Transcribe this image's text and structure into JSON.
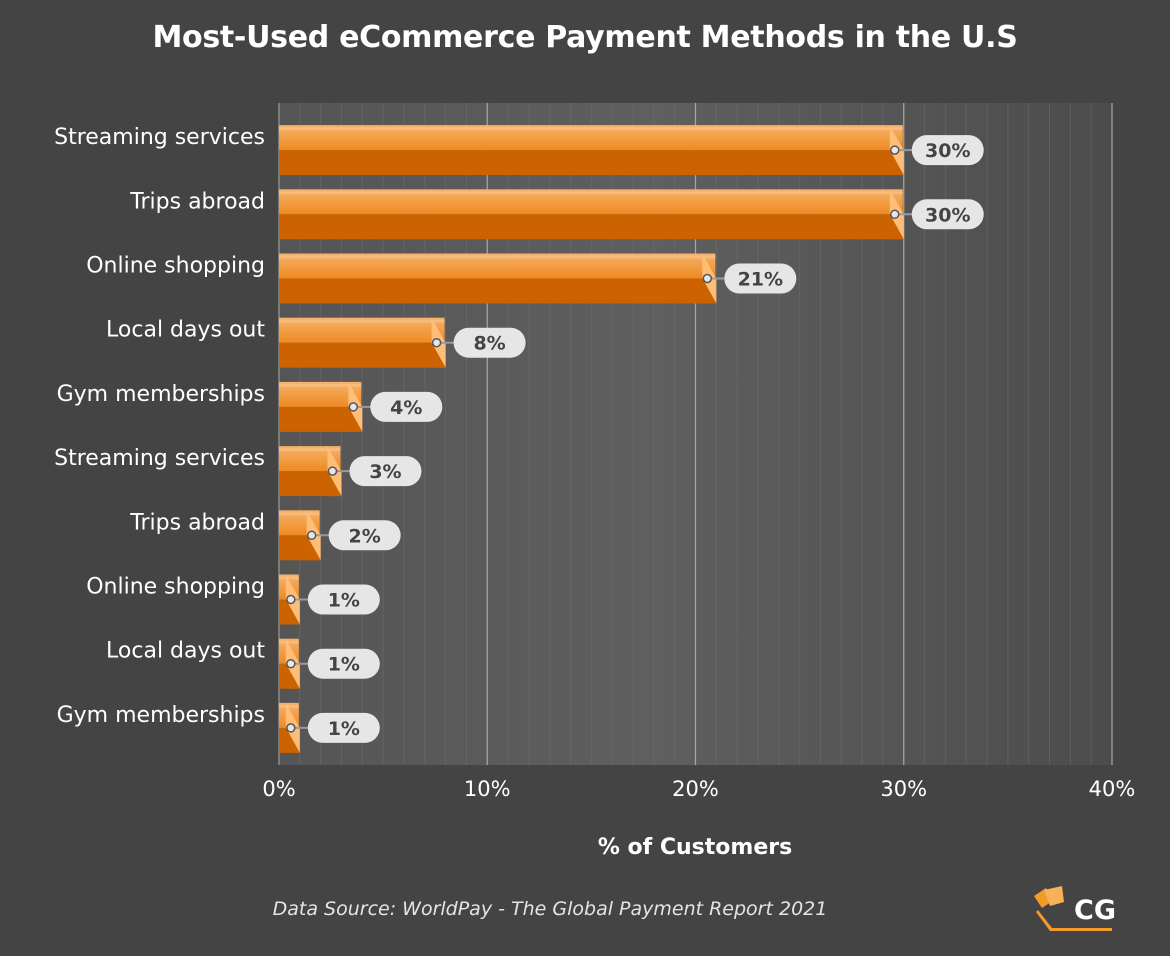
{
  "chart_data": {
    "type": "bar",
    "orientation": "horizontal",
    "title": "Most-Used eCommerce Payment Methods in the U.S",
    "xlabel": "% of Customers",
    "categories": [
      "Streaming services",
      "Trips abroad",
      "Online shopping",
      "Local days out",
      "Gym memberships",
      "Streaming services",
      "Trips abroad",
      "Online shopping",
      "Local days out",
      "Gym memberships"
    ],
    "values": [
      30,
      30,
      21,
      8,
      4,
      3,
      2,
      1,
      1,
      1
    ],
    "data_labels": [
      "30%",
      "30%",
      "21%",
      "8%",
      "4%",
      "3%",
      "2%",
      "1%",
      "1%",
      "1%"
    ],
    "xlim": [
      0,
      40
    ],
    "xticks": [
      0,
      10,
      20,
      30,
      40
    ],
    "xtick_labels": [
      "0%",
      "10%",
      "20%",
      "30%",
      "40%"
    ],
    "grid": true,
    "legend": "none",
    "colors": {
      "background": "#444444",
      "plot_area": "#595959",
      "bar_top": "#f5a04a",
      "bar_bottom": "#cc6200",
      "bar_cap": "#ffbe78",
      "label_bg": "#e6e6e6",
      "label_text": "#444444",
      "text": "#ffffff"
    }
  },
  "source_note": "Data Source: WorldPay - The Global Payment Report 2021",
  "logo": {
    "text": "CG",
    "icon": "cards-logo-icon",
    "color": "#f39a2b"
  }
}
